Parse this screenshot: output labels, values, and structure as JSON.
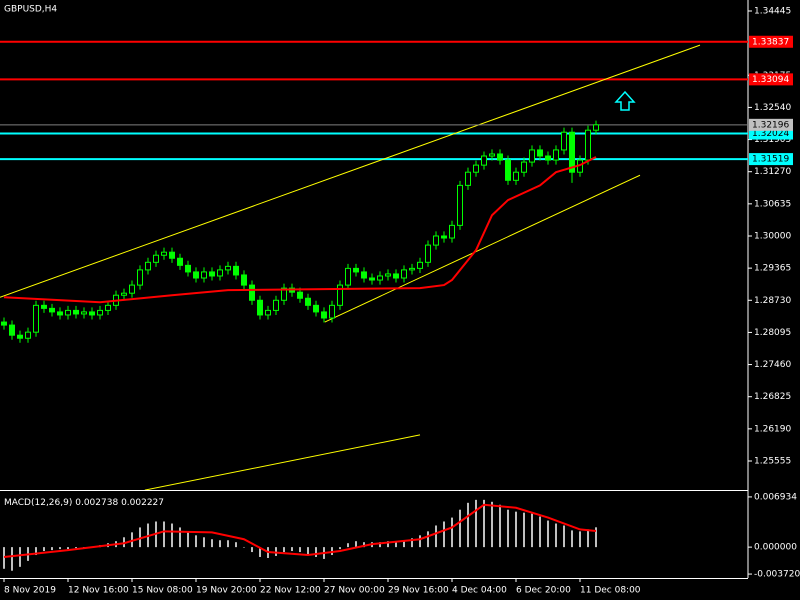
{
  "chart_data": {
    "type": "candlestick",
    "title": "GBPUSD,H4",
    "color": "#00ff00",
    "ylim": [
      1.24982,
      1.34662
    ],
    "yticks": [
      1.34445,
      1.33175,
      {
        "value": 1.3254,
        "label": "1.32540"
      },
      1.31905,
      {
        "value": 1.3127,
        "label": "1.31270"
      },
      1.30635,
      {
        "value": 1.3,
        "label": "1.30000"
      },
      1.29365,
      {
        "value": 1.2873,
        "label": "1.28730"
      },
      1.28095,
      {
        "value": 1.2746,
        "label": "1.27460"
      },
      1.26825,
      {
        "value": 1.2619,
        "label": "1.26190"
      },
      1.25555
    ],
    "xticks": [
      {
        "value": 0,
        "label": "8 Nov 2019"
      },
      {
        "value": 8,
        "label": "12 Nov 16:00"
      },
      {
        "value": 16,
        "label": "15 Nov 08:00"
      },
      {
        "value": 24,
        "label": "19 Nov 20:00"
      },
      {
        "value": 32,
        "label": "22 Nov 12:00"
      },
      {
        "value": 40,
        "label": "27 Nov 00:00"
      },
      {
        "value": 48,
        "label": "29 Nov 16:00"
      },
      {
        "value": 56,
        "label": "4 Dec 04:00"
      },
      {
        "value": 64,
        "label": "6 Dec 20:00"
      },
      {
        "value": 72,
        "label": "11 Dec 08:00"
      }
    ],
    "open": [
      1.283,
      1.2824,
      1.2804,
      1.2798,
      1.281,
      1.2863,
      1.2857,
      1.285,
      1.2844,
      1.2853,
      1.2846,
      1.285,
      1.2844,
      1.2853,
      1.2863,
      1.2883,
      1.2887,
      1.2903,
      1.2933,
      1.2948,
      1.2962,
      1.2968,
      1.2956,
      1.2942,
      1.2929,
      1.2917,
      1.2929,
      1.2921,
      1.2933,
      1.294,
      1.2923,
      1.2903,
      1.2873,
      1.2844,
      1.2853,
      1.2873,
      1.2897,
      1.2889,
      1.2877,
      1.2863,
      1.285,
      1.2838,
      1.2863,
      1.2903,
      1.2936,
      1.2929,
      1.2917,
      1.2913,
      1.2921,
      1.2925,
      1.2917,
      1.2933,
      1.2936,
      1.2948,
      1.2982,
      1.3,
      1.2996,
      1.3021,
      1.31,
      1.3126,
      1.314,
      1.3158,
      1.3162,
      1.315,
      1.311,
      1.3126,
      1.3146,
      1.317,
      1.3158,
      1.315,
      1.317,
      1.3205,
      1.3126,
      1.315,
      1.3209
    ],
    "high": [
      1.2839,
      1.2833,
      1.2813,
      1.2819,
      1.2872,
      1.2872,
      1.2866,
      1.2859,
      1.2862,
      1.2862,
      1.2859,
      1.2859,
      1.2862,
      1.2872,
      1.2892,
      1.2896,
      1.2912,
      1.2942,
      1.2957,
      1.2971,
      1.2977,
      1.2977,
      1.2965,
      1.2951,
      1.2938,
      1.2938,
      1.2938,
      1.2942,
      1.2949,
      1.2949,
      1.2932,
      1.2912,
      1.2882,
      1.2862,
      1.2882,
      1.2906,
      1.2906,
      1.2898,
      1.2886,
      1.2872,
      1.2859,
      1.2872,
      1.2912,
      1.2945,
      1.2945,
      1.2938,
      1.2926,
      1.293,
      1.2934,
      1.2934,
      1.2942,
      1.2945,
      1.2957,
      1.2991,
      1.3009,
      1.3009,
      1.303,
      1.3109,
      1.3135,
      1.3149,
      1.3167,
      1.3171,
      1.3171,
      1.3159,
      1.3135,
      1.3155,
      1.3179,
      1.3179,
      1.3167,
      1.3179,
      1.3214,
      1.3214,
      1.3159,
      1.3218,
      1.3228
    ],
    "low": [
      1.2815,
      1.2795,
      1.2789,
      1.2789,
      1.2801,
      1.2848,
      1.2841,
      1.2835,
      1.2835,
      1.2837,
      1.2837,
      1.2835,
      1.2835,
      1.2844,
      1.2854,
      1.2874,
      1.2878,
      1.2894,
      1.2924,
      1.2939,
      1.2953,
      1.2947,
      1.2933,
      1.292,
      1.2908,
      1.2908,
      1.2912,
      1.2912,
      1.2924,
      1.2914,
      1.2894,
      1.2864,
      1.2835,
      1.2835,
      1.2844,
      1.2864,
      1.288,
      1.2868,
      1.2854,
      1.2841,
      1.2829,
      1.2829,
      1.2854,
      1.2894,
      1.292,
      1.2908,
      1.2904,
      1.2904,
      1.2912,
      1.2908,
      1.2908,
      1.2924,
      1.2927,
      1.2939,
      1.2973,
      1.2987,
      1.2987,
      1.3012,
      1.3091,
      1.3117,
      1.3131,
      1.3149,
      1.3141,
      1.3101,
      1.3101,
      1.3117,
      1.3137,
      1.3149,
      1.3141,
      1.3141,
      1.3161,
      1.3105,
      1.3117,
      1.3141,
      1.32
    ],
    "close": [
      1.2824,
      1.2804,
      1.2798,
      1.281,
      1.2863,
      1.2857,
      1.285,
      1.2844,
      1.2853,
      1.2846,
      1.285,
      1.2844,
      1.2853,
      1.2863,
      1.2883,
      1.2887,
      1.2903,
      1.2933,
      1.2948,
      1.2962,
      1.2968,
      1.2956,
      1.2942,
      1.2929,
      1.2917,
      1.2929,
      1.2921,
      1.2933,
      1.294,
      1.2923,
      1.2903,
      1.2873,
      1.2844,
      1.2853,
      1.2873,
      1.2897,
      1.2889,
      1.2877,
      1.2863,
      1.285,
      1.2838,
      1.2863,
      1.2903,
      1.2936,
      1.2929,
      1.2917,
      1.2913,
      1.2921,
      1.2925,
      1.2917,
      1.2933,
      1.2936,
      1.2948,
      1.2982,
      1.3,
      1.2996,
      1.3021,
      1.31,
      1.3126,
      1.314,
      1.3158,
      1.3162,
      1.315,
      1.311,
      1.3126,
      1.3146,
      1.317,
      1.3158,
      1.315,
      1.317,
      1.3205,
      1.3126,
      1.315,
      1.3209,
      1.32196
    ],
    "ma": {
      "color": "#ff0000",
      "x": [
        0,
        12,
        21,
        28,
        52,
        55,
        56,
        59,
        61,
        63,
        67,
        69,
        72,
        74
      ],
      "values": [
        1.2879,
        1.2869,
        1.2883,
        1.2893,
        1.2897,
        1.2903,
        1.2913,
        1.2972,
        1.3041,
        1.3071,
        1.31,
        1.3126,
        1.314,
        1.3156
      ]
    },
    "trendlines": [
      {
        "color": "#ffff00",
        "x": [
          -0.5,
          87
        ],
        "values": [
          1.2879,
          1.3377
        ]
      },
      {
        "color": "#ffff00",
        "x": [
          40.1,
          79.5
        ],
        "values": [
          1.283,
          1.312
        ]
      },
      {
        "color": "#ffff00",
        "x": [
          17.6,
          52
        ],
        "values": [
          1.2498,
          1.2607
        ]
      }
    ],
    "hlines": [
      {
        "value": 1.33837,
        "color": "#ff0000"
      },
      {
        "value": 1.33094,
        "color": "#ff0000"
      },
      {
        "value": 1.32024,
        "color": "#00ffff"
      },
      {
        "value": 1.31519,
        "color": "#00ffff"
      }
    ],
    "macd": {
      "title": "MACD(12,26,9)",
      "color": "#c0c0c0",
      "signal_color": "#ff0000",
      "ylim": [
        -0.004264,
        0.007614
      ],
      "yticks": [
        0.006934,
        {
          "value": 0,
          "label": "0.000000"
        },
        {
          "value": -0.00372,
          "label": "-0.003720"
        }
      ],
      "histogram": [
        -0.00299,
        -0.00326,
        -0.00272,
        -0.0019,
        -0.00109,
        -0.00054,
        -0.00041,
        -0.00027,
        -0.00027,
        -0.00014,
        -0.00014,
        1e-05,
        0.00027,
        0.00054,
        0.00082,
        0.00136,
        0.00204,
        0.00272,
        0.00326,
        0.00354,
        0.00354,
        0.00326,
        0.00272,
        0.00218,
        0.00163,
        0.00136,
        0.00109,
        0.00095,
        0.00095,
        0.00068,
        2e-05,
        -0.00068,
        -0.00136,
        -0.0015,
        -0.00122,
        -0.00068,
        -0.00054,
        -0.00068,
        -0.00095,
        -0.00136,
        -0.00163,
        -0.00109,
        -0.00027,
        0.00054,
        0.00082,
        0.00068,
        0.00068,
        0.00068,
        0.00082,
        0.00082,
        0.00095,
        0.00122,
        0.00163,
        0.00218,
        0.00299,
        0.00354,
        0.00408,
        0.00517,
        0.00612,
        0.00653,
        0.00653,
        0.00626,
        0.00585,
        0.00517,
        0.0049,
        0.00476,
        0.00462,
        0.00422,
        0.00367,
        0.00326,
        0.00299,
        0.00231,
        0.00218,
        0.00245,
        0.002738
      ],
      "signal_x": [
        0,
        8,
        15,
        20,
        26,
        30,
        33,
        38,
        42,
        46,
        52,
        56,
        60,
        64,
        68,
        72,
        74
      ],
      "signal": [
        -0.00136,
        -0.00041,
        0.00054,
        0.00218,
        0.00204,
        0.00109,
        -0.00068,
        -0.00109,
        -0.00054,
        0.00041,
        0.00109,
        0.00272,
        0.00585,
        0.00544,
        0.00408,
        0.00245,
        0.002227
      ]
    }
  }
}
